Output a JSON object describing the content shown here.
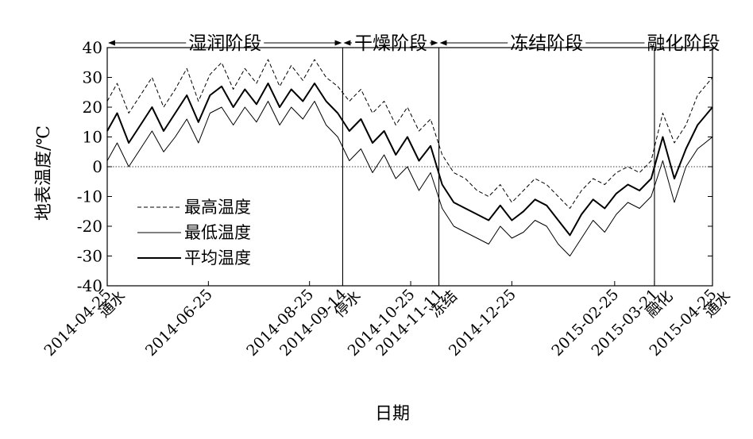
{
  "chart_data": {
    "type": "line",
    "xlabel": "日期",
    "ylabel": "地表温度/℃",
    "ylim": [
      -40,
      40
    ],
    "yticks": [
      40,
      30,
      20,
      10,
      0,
      -10,
      -20,
      -30,
      -40
    ],
    "xlim": [
      "2014-04-25",
      "2015-04-25"
    ],
    "x_ticks": [
      {
        "date": "2014-04-25",
        "label": "2014-04-25",
        "sublabel": "通水"
      },
      {
        "date": "2014-06-25",
        "label": "2014-06-25",
        "sublabel": ""
      },
      {
        "date": "2014-08-25",
        "label": "2014-08-25",
        "sublabel": ""
      },
      {
        "date": "2014-09-14",
        "label": "2014-09-14",
        "sublabel": "停水"
      },
      {
        "date": "2014-10-25",
        "label": "2014-10-25",
        "sublabel": ""
      },
      {
        "date": "2014-11-11",
        "label": "2014-11-11",
        "sublabel": "冻结"
      },
      {
        "date": "2014-12-25",
        "label": "2014-12-25",
        "sublabel": ""
      },
      {
        "date": "2015-02-25",
        "label": "2015-02-25",
        "sublabel": ""
      },
      {
        "date": "2015-03-21",
        "label": "2015-03-21",
        "sublabel": "融化"
      },
      {
        "date": "2015-04-25",
        "label": "2015-04-25",
        "sublabel": "通水"
      }
    ],
    "phases": [
      {
        "label": "湿润阶段",
        "start": "2014-04-25",
        "end": "2014-09-14"
      },
      {
        "label": "干燥阶段",
        "start": "2014-09-14",
        "end": "2014-11-11"
      },
      {
        "label": "冻结阶段",
        "start": "2014-11-11",
        "end": "2015-03-21"
      },
      {
        "label": "融化阶段",
        "start": "2015-03-21",
        "end": "2015-04-25"
      }
    ],
    "zero_line": {
      "value": 0,
      "style": "dotted"
    },
    "legend": {
      "position": "bottom-left"
    },
    "series": [
      {
        "name": "最高温度",
        "style": "dashed",
        "x": [
          "2014-04-25",
          "2014-05-01",
          "2014-05-08",
          "2014-05-15",
          "2014-05-22",
          "2014-05-29",
          "2014-06-05",
          "2014-06-12",
          "2014-06-19",
          "2014-06-26",
          "2014-07-03",
          "2014-07-10",
          "2014-07-17",
          "2014-07-24",
          "2014-07-31",
          "2014-08-07",
          "2014-08-14",
          "2014-08-21",
          "2014-08-28",
          "2014-09-04",
          "2014-09-11",
          "2014-09-18",
          "2014-09-25",
          "2014-10-02",
          "2014-10-09",
          "2014-10-16",
          "2014-10-23",
          "2014-10-30",
          "2014-11-06",
          "2014-11-13",
          "2014-11-20",
          "2014-11-27",
          "2014-12-04",
          "2014-12-11",
          "2014-12-18",
          "2014-12-25",
          "2015-01-01",
          "2015-01-08",
          "2015-01-15",
          "2015-01-22",
          "2015-01-29",
          "2015-02-05",
          "2015-02-12",
          "2015-02-19",
          "2015-02-26",
          "2015-03-05",
          "2015-03-12",
          "2015-03-19",
          "2015-03-26",
          "2015-04-02",
          "2015-04-09",
          "2015-04-16",
          "2015-04-25"
        ],
        "values": [
          22,
          28,
          18,
          24,
          30,
          20,
          26,
          33,
          22,
          31,
          35,
          26,
          33,
          28,
          36,
          27,
          34,
          29,
          36,
          30,
          27,
          22,
          26,
          18,
          22,
          14,
          20,
          12,
          16,
          4,
          -2,
          -4,
          -8,
          -10,
          -6,
          -12,
          -8,
          -4,
          -6,
          -10,
          -14,
          -8,
          -4,
          -6,
          -2,
          0,
          -2,
          2,
          18,
          8,
          14,
          24,
          30
        ]
      },
      {
        "name": "最低温度",
        "style": "solid-thin",
        "x": [
          "2014-04-25",
          "2014-05-01",
          "2014-05-08",
          "2014-05-15",
          "2014-05-22",
          "2014-05-29",
          "2014-06-05",
          "2014-06-12",
          "2014-06-19",
          "2014-06-26",
          "2014-07-03",
          "2014-07-10",
          "2014-07-17",
          "2014-07-24",
          "2014-07-31",
          "2014-08-07",
          "2014-08-14",
          "2014-08-21",
          "2014-08-28",
          "2014-09-04",
          "2014-09-11",
          "2014-09-18",
          "2014-09-25",
          "2014-10-02",
          "2014-10-09",
          "2014-10-16",
          "2014-10-23",
          "2014-10-30",
          "2014-11-06",
          "2014-11-13",
          "2014-11-20",
          "2014-11-27",
          "2014-12-04",
          "2014-12-11",
          "2014-12-18",
          "2014-12-25",
          "2015-01-01",
          "2015-01-08",
          "2015-01-15",
          "2015-01-22",
          "2015-01-29",
          "2015-02-05",
          "2015-02-12",
          "2015-02-19",
          "2015-02-26",
          "2015-03-05",
          "2015-03-12",
          "2015-03-19",
          "2015-03-26",
          "2015-04-02",
          "2015-04-09",
          "2015-04-16",
          "2015-04-25"
        ],
        "values": [
          2,
          8,
          0,
          6,
          12,
          5,
          10,
          16,
          8,
          18,
          20,
          14,
          20,
          15,
          22,
          14,
          20,
          16,
          22,
          14,
          10,
          2,
          6,
          -2,
          4,
          -4,
          0,
          -8,
          -2,
          -14,
          -20,
          -22,
          -24,
          -26,
          -20,
          -24,
          -22,
          -18,
          -20,
          -26,
          -30,
          -24,
          -18,
          -22,
          -16,
          -12,
          -14,
          -10,
          2,
          -12,
          0,
          6,
          10
        ]
      },
      {
        "name": "平均温度",
        "style": "solid-thick",
        "x": [
          "2014-04-25",
          "2014-05-01",
          "2014-05-08",
          "2014-05-15",
          "2014-05-22",
          "2014-05-29",
          "2014-06-05",
          "2014-06-12",
          "2014-06-19",
          "2014-06-26",
          "2014-07-03",
          "2014-07-10",
          "2014-07-17",
          "2014-07-24",
          "2014-07-31",
          "2014-08-07",
          "2014-08-14",
          "2014-08-21",
          "2014-08-28",
          "2014-09-04",
          "2014-09-11",
          "2014-09-18",
          "2014-09-25",
          "2014-10-02",
          "2014-10-09",
          "2014-10-16",
          "2014-10-23",
          "2014-10-30",
          "2014-11-06",
          "2014-11-13",
          "2014-11-20",
          "2014-11-27",
          "2014-12-04",
          "2014-12-11",
          "2014-12-18",
          "2014-12-25",
          "2015-01-01",
          "2015-01-08",
          "2015-01-15",
          "2015-01-22",
          "2015-01-29",
          "2015-02-05",
          "2015-02-12",
          "2015-02-19",
          "2015-02-26",
          "2015-03-05",
          "2015-03-12",
          "2015-03-19",
          "2015-03-26",
          "2015-04-02",
          "2015-04-09",
          "2015-04-16",
          "2015-04-25"
        ],
        "values": [
          12,
          18,
          8,
          14,
          20,
          12,
          18,
          24,
          15,
          24,
          27,
          20,
          26,
          21,
          28,
          20,
          26,
          22,
          28,
          22,
          18,
          12,
          16,
          8,
          12,
          4,
          10,
          2,
          7,
          -6,
          -12,
          -14,
          -16,
          -18,
          -13,
          -18,
          -15,
          -11,
          -13,
          -18,
          -23,
          -16,
          -11,
          -14,
          -9,
          -6,
          -8,
          -4,
          10,
          -4,
          6,
          14,
          20
        ]
      }
    ]
  }
}
